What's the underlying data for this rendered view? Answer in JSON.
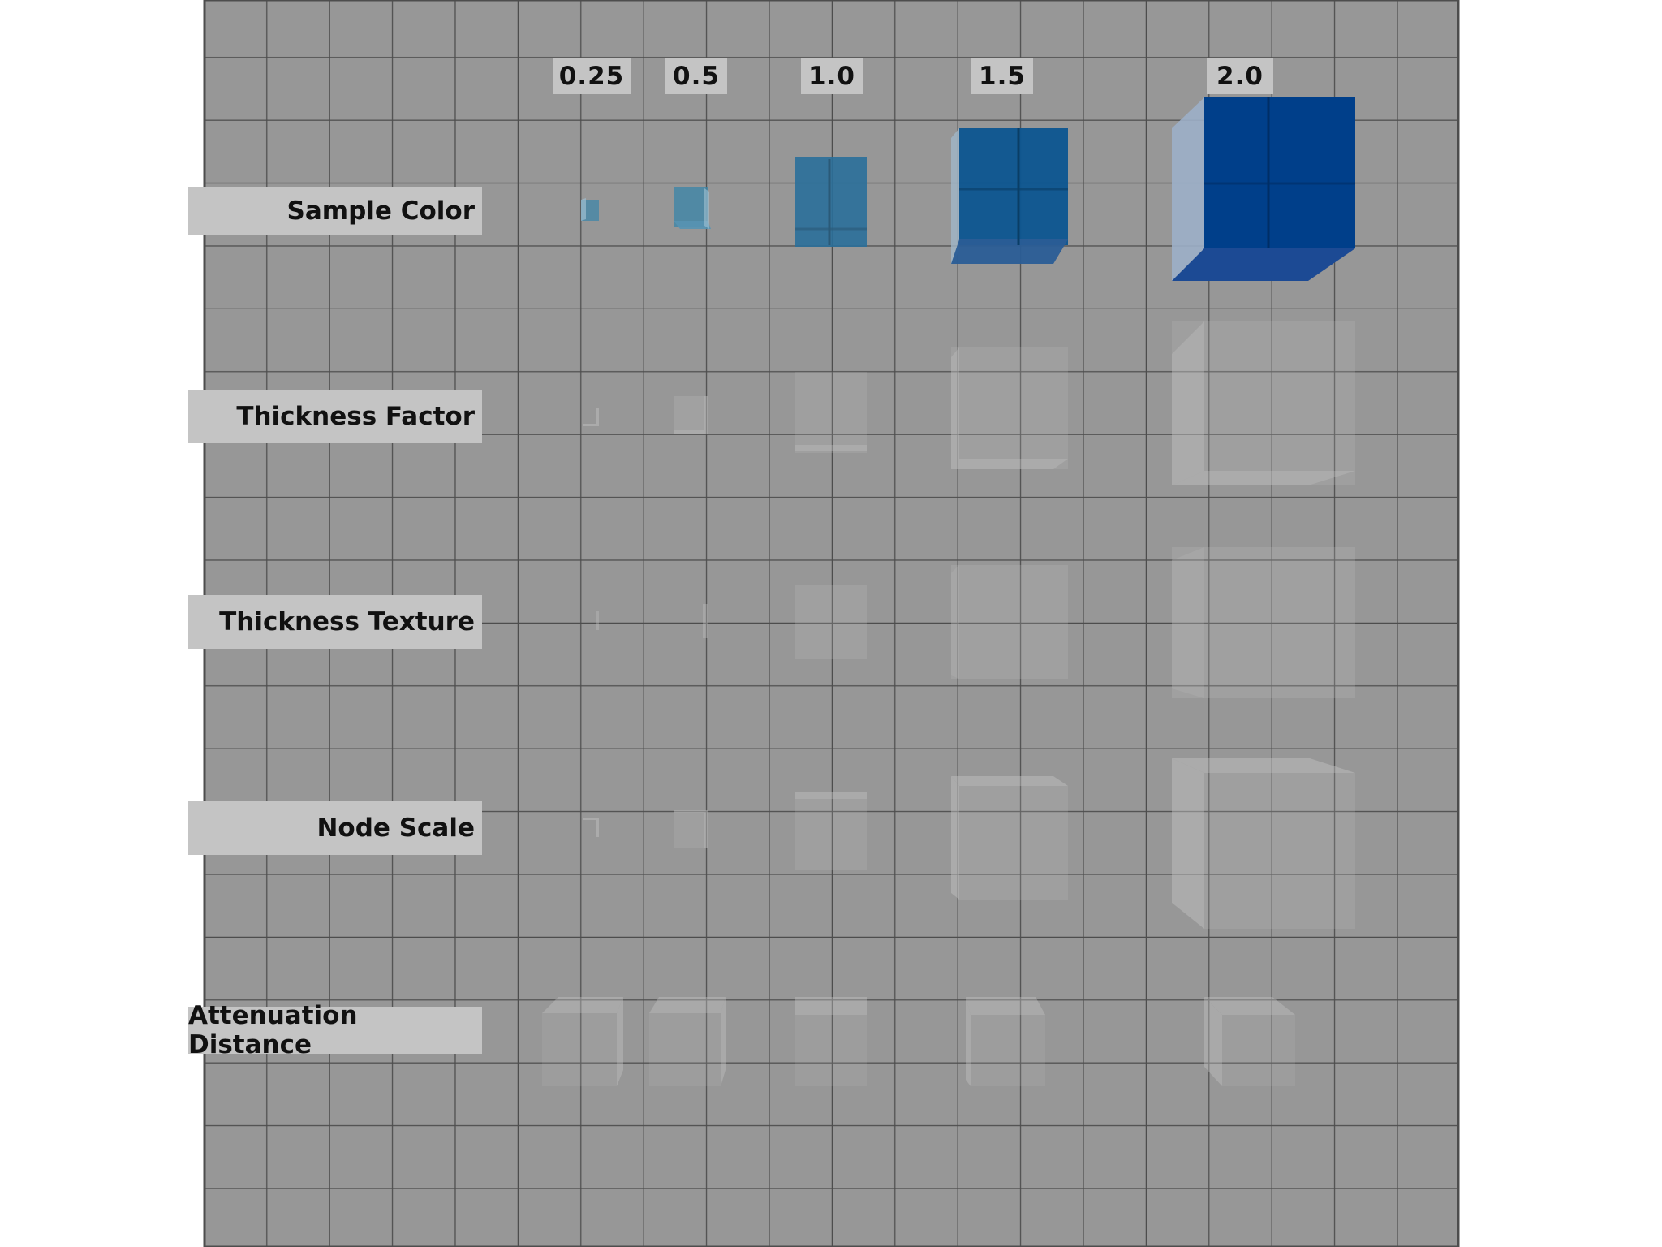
{
  "columns": {
    "c1": "0.25",
    "c2": "0.5",
    "c3": "1.0",
    "c4": "1.5",
    "c5": "2.0"
  },
  "rows": {
    "r1": "Sample Color",
    "r2": "Thickness Factor",
    "r3": "Thickness Texture",
    "r4": "Node Scale",
    "r5": "Attenuation Distance"
  },
  "colors": {
    "background_panel": "#979797",
    "grid_line": "#4d4d4d",
    "label_bg": "#c4c4c4",
    "cube_blue_small": "#3f86a8",
    "cube_blue_large": "#003f8a",
    "cube_ghost": "#b8b8b8"
  }
}
